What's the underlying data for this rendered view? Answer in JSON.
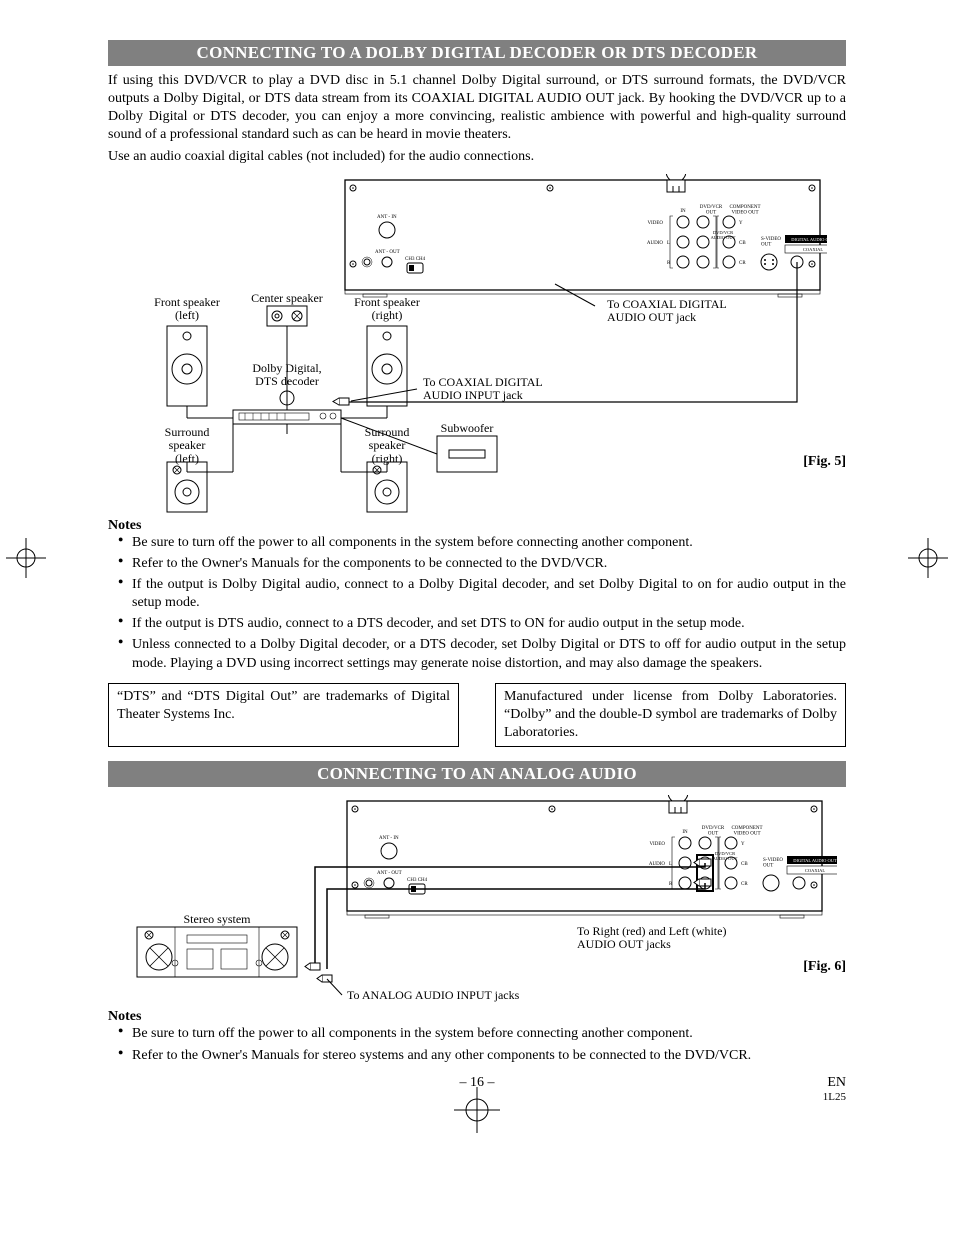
{
  "section1": {
    "title": "CONNECTING TO A DOLBY DIGITAL DECODER OR DTS DECODER",
    "para1": "If using this DVD/VCR to play a DVD disc in 5.1 channel Dolby Digital surround, or DTS surround formats, the DVD/VCR outputs a Dolby Digital, or DTS data stream from its COAXIAL DIGITAL AUDIO OUT jack. By hooking the DVD/VCR up to a Dolby Digital or DTS decoder, you can enjoy a more convincing, realistic ambience with powerful and high-quality surround sound of a professional standard such as can be heard in movie theaters.",
    "para2": "Use an audio coaxial digital cables (not included) for the audio connections.",
    "fig_label": "[Fig. 5]",
    "labels": {
      "front_left": "Front speaker\n(left)",
      "front_right": "Front speaker\n(right)",
      "center": "Center speaker",
      "decoder": "Dolby Digital,\nDTS  decoder",
      "surround_left": "Surround\nspeaker\n(left)",
      "surround_right": "Surround\nspeaker\n(right)",
      "subwoofer": "Subwoofer",
      "coax_out": "To COAXIAL DIGITAL\nAUDIO OUT jack",
      "coax_in": "To COAXIAL DIGITAL\nAUDIO INPUT jack"
    },
    "notes_heading": "Notes",
    "notes": [
      "Be sure to turn off the power to all components in the system before connecting another component.",
      "Refer to the Owner's Manuals for the components to be connected to the DVD/VCR.",
      "If the output is Dolby Digital audio, connect to a Dolby Digital decoder, and set Dolby Digital to on for audio output in the setup mode.",
      "If the output is DTS audio, connect to a DTS decoder, and set DTS to ON for audio output in the setup mode.",
      "Unless connected to a Dolby Digital decoder, or a DTS decoder, set Dolby Digital or DTS to off for audio output in the setup mode. Playing a DVD using incorrect settings may generate noise distortion, and may also damage the speakers."
    ],
    "trademark1": "“DTS” and “DTS Digital Out” are trademarks of Digital Theater Systems Inc.",
    "trademark2": "Manufactured under license from Dolby Laboratories. “Dolby” and the double-D symbol are trademarks of Dolby Laboratories."
  },
  "section2": {
    "title": "CONNECTING TO AN ANALOG AUDIO",
    "fig_label": "[Fig. 6]",
    "labels": {
      "stereo": "Stereo system",
      "audio_out": "To Right (red) and Left (white)\nAUDIO OUT jacks",
      "analog_in": "To ANALOG AUDIO INPUT jacks"
    },
    "notes_heading": "Notes",
    "notes": [
      "Be sure to turn off the power to all components in the system before connecting another component.",
      "Refer to the Owner's Manuals for stereo systems and any other components to be connected to the DVD/VCR."
    ]
  },
  "footer": {
    "page": "– 16 –",
    "lang": "EN",
    "code": "1L25"
  },
  "panel_labels": {
    "ant_in": "ANT - IN",
    "ant_out": "ANT - OUT",
    "ch3_ch4": "CH3 CH4",
    "in": "IN",
    "dvdvcr_out": "DVD/VCR\nOUT",
    "component": "COMPONENT\nVIDEO OUT",
    "dvdvcr_audio": "DVD/VCR\nAUDIO OUT",
    "svideo": "S-VIDEO\nOUT",
    "digital": "DIGITAL AUDIO OUT",
    "coax": "COAXIAL",
    "video": "VIDEO",
    "audio": "AUDIO",
    "l": "L",
    "r": "R",
    "y": "Y",
    "cb": "CB",
    "cr": "CR"
  }
}
